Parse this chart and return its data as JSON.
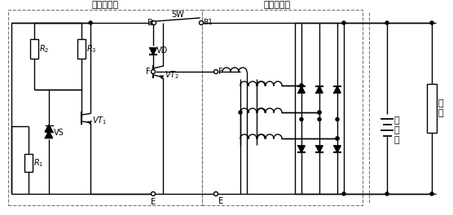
{
  "label_regulator": "电子调节器",
  "label_generator": "交流发电机",
  "label_battery": "蓄\n电\n池",
  "label_load": "负\n载",
  "line_color": "#000000",
  "bg_color": "#ffffff",
  "fig_width": 5.56,
  "fig_height": 2.64,
  "dpi": 100
}
